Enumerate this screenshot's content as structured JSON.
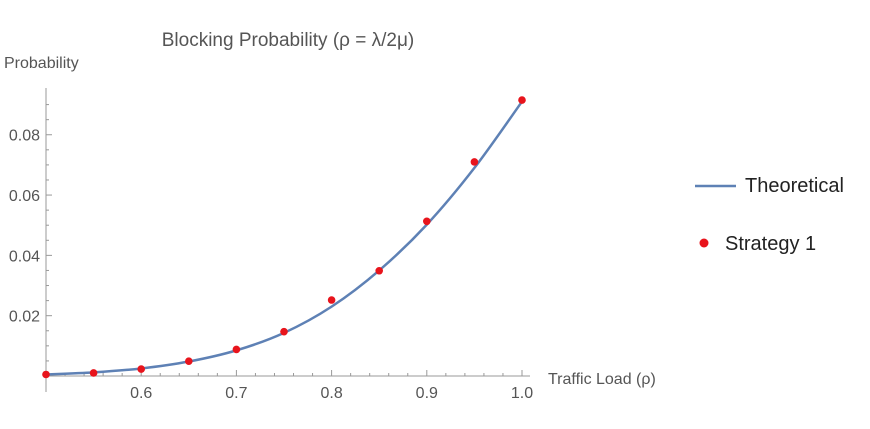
{
  "chart_data": {
    "type": "line",
    "title": "Blocking Probability (ρ = λ/2μ)",
    "xlabel": "Traffic Load (ρ)",
    "ylabel": "Probability",
    "xlim": [
      0.5,
      1.0
    ],
    "ylim": [
      0,
      0.0955
    ],
    "x_ticks": [
      0.6,
      0.7,
      0.8,
      0.9,
      1.0
    ],
    "x_tick_labels": [
      "0.6",
      "0.7",
      "0.8",
      "0.9",
      "1.0"
    ],
    "y_ticks": [
      0.02,
      0.04,
      0.06,
      0.08
    ],
    "y_tick_labels": [
      "0.02",
      "0.04",
      "0.06",
      "0.08"
    ],
    "legend_position": "right",
    "series": [
      {
        "name": "Theoretical",
        "style": "line",
        "color": "#5e81b5",
        "x": [
          0.5,
          0.55,
          0.6,
          0.65,
          0.7,
          0.75,
          0.8,
          0.85,
          0.9,
          0.95,
          1.0
        ],
        "values": [
          0.0005,
          0.0012,
          0.0025,
          0.0048,
          0.0085,
          0.0143,
          0.023,
          0.035,
          0.0502,
          0.069,
          0.091
        ]
      },
      {
        "name": "Strategy 1",
        "style": "scatter",
        "color": "#e8141c",
        "x": [
          0.5,
          0.55,
          0.6,
          0.65,
          0.7,
          0.75,
          0.8,
          0.85,
          0.9,
          0.95,
          1.0
        ],
        "values": [
          0.0005,
          0.001,
          0.0023,
          0.0049,
          0.0088,
          0.0147,
          0.0252,
          0.0349,
          0.0513,
          0.071,
          0.0915
        ]
      }
    ]
  }
}
